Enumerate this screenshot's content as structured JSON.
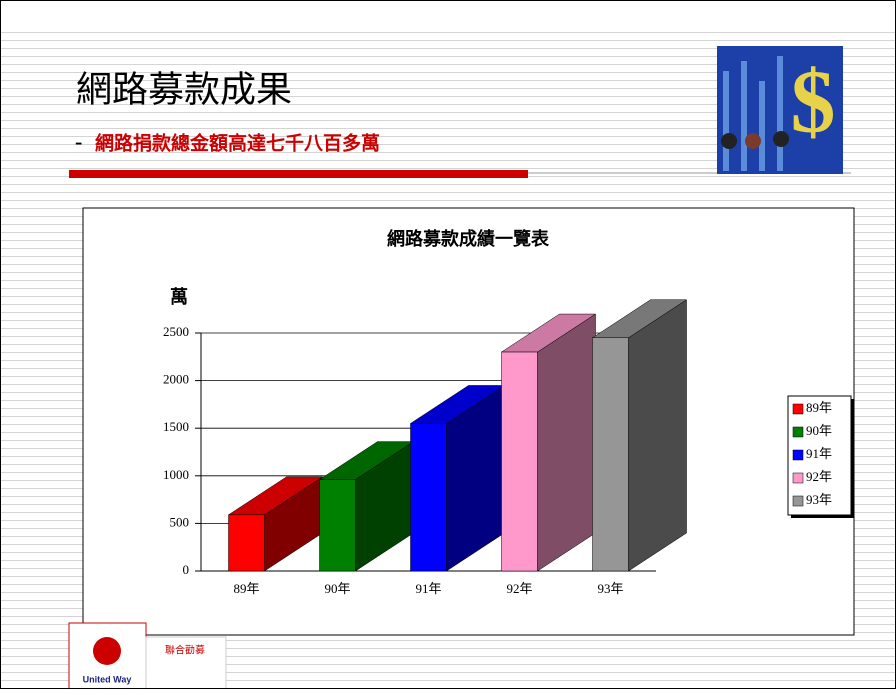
{
  "slide": {
    "title": "網路募款成果",
    "subtitle_dash": "-",
    "subtitle": "網路捐款總金額高達七千八百多萬",
    "logo_left": "United Way",
    "logo_right": "聯合勸募"
  },
  "chart_data": {
    "type": "bar3d",
    "title": "網路募款成績一覽表",
    "y_label": "萬",
    "categories": [
      "89年",
      "90年",
      "91年",
      "92年",
      "93年"
    ],
    "values": [
      590,
      960,
      1550,
      2300,
      2450
    ],
    "colors": [
      "#ff0000",
      "#008000",
      "#0000ff",
      "#ff99cc",
      "#969696"
    ],
    "ylim": [
      0,
      2500
    ],
    "yticks": [
      0,
      500,
      1000,
      1500,
      2000,
      2500
    ],
    "grid": true,
    "legend": "right"
  }
}
